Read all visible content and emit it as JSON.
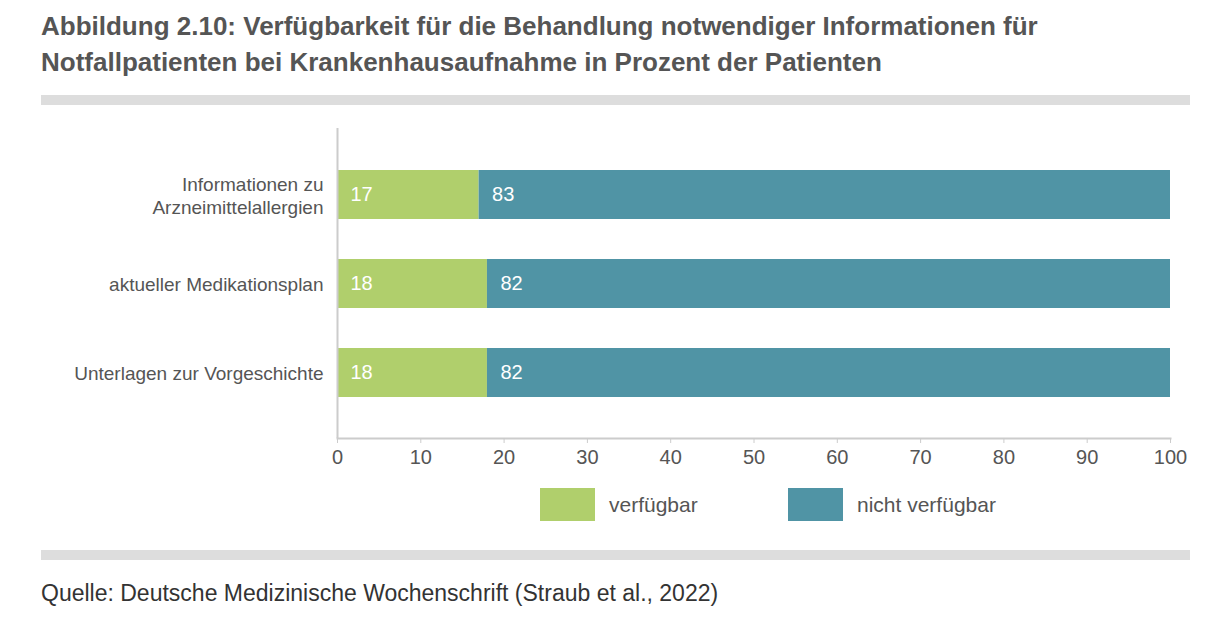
{
  "chart_data": {
    "type": "bar",
    "orientation": "horizontal",
    "stacked": true,
    "title": "Abbildung 2.10: Verfügbarkeit für die Behandlung notwendiger Informationen für Notfallpatienten bei Krankenhausaufnahme in Prozent der Patienten",
    "categories": [
      "Informationen zu Arzneimittelallergien",
      "aktueller Medikationsplan",
      "Unterlagen zur Vorgeschichte"
    ],
    "series": [
      {
        "name": "verfügbar",
        "color": "#b0cf6c",
        "values": [
          17,
          18,
          18
        ]
      },
      {
        "name": "nicht verfügbar",
        "color": "#5094a5",
        "values": [
          83,
          82,
          82
        ]
      }
    ],
    "xlim": [
      0,
      100
    ],
    "xticks": [
      0,
      10,
      20,
      30,
      40,
      50,
      60,
      70,
      80,
      90,
      100
    ],
    "data_labels": true,
    "grid": false,
    "legend": "bottom",
    "caption": "Quelle: Deutsche Medizinische Wochenschrift (Straub et al., 2022)"
  }
}
